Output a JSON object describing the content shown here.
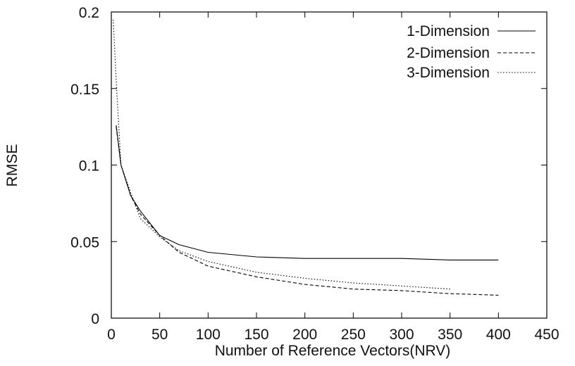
{
  "chart_data": {
    "type": "line",
    "title": "",
    "xlabel": "Number of Reference Vectors(NRV)",
    "ylabel": "RMSE",
    "xlim": [
      0,
      450
    ],
    "ylim": [
      0,
      0.2
    ],
    "xticks": [
      0,
      50,
      100,
      150,
      200,
      250,
      300,
      350,
      400,
      450
    ],
    "xtick_labels": [
      "0",
      "50",
      "100",
      "150",
      "200",
      "250",
      "300",
      "350",
      "400",
      "450"
    ],
    "yticks": [
      0,
      0.05,
      0.1,
      0.15,
      0.2
    ],
    "ytick_labels": [
      "0",
      "0.05",
      "0.1",
      "0.15",
      "0.2"
    ],
    "grid": false,
    "legend_position": "top-right",
    "series": [
      {
        "name": "1-Dimension",
        "style": "solid",
        "color": "#000000",
        "x": [
          5,
          10,
          20,
          30,
          50,
          70,
          100,
          150,
          200,
          250,
          300,
          350,
          400
        ],
        "y": [
          0.126,
          0.1,
          0.08,
          0.07,
          0.054,
          0.048,
          0.043,
          0.04,
          0.039,
          0.039,
          0.039,
          0.038,
          0.038
        ]
      },
      {
        "name": "2-Dimension",
        "style": "dashed",
        "color": "#000000",
        "x": [
          5,
          10,
          20,
          30,
          50,
          70,
          100,
          150,
          200,
          250,
          300,
          350,
          400
        ],
        "y": [
          0.125,
          0.1,
          0.08,
          0.068,
          0.054,
          0.043,
          0.034,
          0.027,
          0.022,
          0.019,
          0.018,
          0.016,
          0.015
        ]
      },
      {
        "name": "3-Dimension",
        "style": "dotted",
        "color": "#000000",
        "x": [
          2,
          5,
          10,
          20,
          30,
          50,
          70,
          100,
          150,
          200,
          250,
          300,
          350
        ],
        "y": [
          0.195,
          0.155,
          0.1,
          0.082,
          0.065,
          0.053,
          0.044,
          0.037,
          0.03,
          0.026,
          0.023,
          0.021,
          0.019
        ]
      }
    ]
  }
}
